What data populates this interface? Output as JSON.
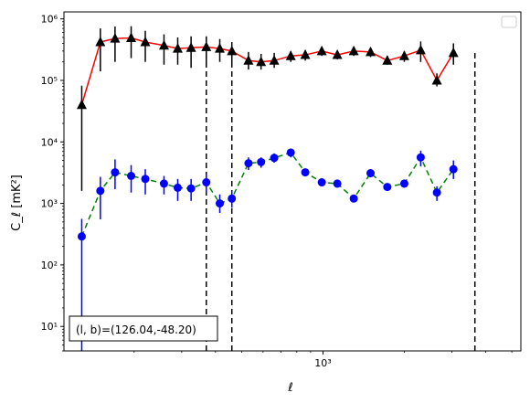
{
  "chart_data": {
    "type": "scatter",
    "xlabel": "ℓ",
    "ylabel": "C_ℓ [mK²]",
    "xscale": "log",
    "yscale": "log",
    "xlim": [
      110,
      5400
    ],
    "ylim": [
      4,
      1300000
    ],
    "x_tick_label": "10³",
    "y_tick_labels": [
      "10¹",
      "10²",
      "10³",
      "10⁴",
      "10⁵",
      "10⁶"
    ],
    "annotation": "(l, b)=(126.04,-48.20)",
    "legend": "empty box, top-right",
    "vlines_x": [
      370,
      460,
      3650
    ],
    "series": [
      {
        "style": "red solid line, black triangle markers, black error bars",
        "color": "#ff0000",
        "marker_color": "#000000",
        "points": [
          {
            "x": 128,
            "y": 40000,
            "lo": 1600,
            "hi": 82000
          },
          {
            "x": 150,
            "y": 420000,
            "lo": 140000,
            "hi": 700000
          },
          {
            "x": 170,
            "y": 480000,
            "lo": 200000,
            "hi": 750000
          },
          {
            "x": 195,
            "y": 490000,
            "lo": 230000,
            "hi": 760000
          },
          {
            "x": 220,
            "y": 420000,
            "lo": 200000,
            "hi": 640000
          },
          {
            "x": 258,
            "y": 370000,
            "lo": 180000,
            "hi": 560000
          },
          {
            "x": 290,
            "y": 330000,
            "lo": 180000,
            "hi": 500000
          },
          {
            "x": 325,
            "y": 340000,
            "lo": 160000,
            "hi": 520000
          },
          {
            "x": 370,
            "y": 350000,
            "lo": 180000,
            "hi": 520000
          },
          {
            "x": 415,
            "y": 330000,
            "lo": 200000,
            "hi": 470000
          },
          {
            "x": 460,
            "y": 300000,
            "lo": 190000,
            "hi": 420000
          },
          {
            "x": 530,
            "y": 210000,
            "lo": 150000,
            "hi": 290000
          },
          {
            "x": 590,
            "y": 200000,
            "lo": 150000,
            "hi": 270000
          },
          {
            "x": 660,
            "y": 210000,
            "lo": 160000,
            "hi": 280000
          },
          {
            "x": 760,
            "y": 250000,
            "lo": 200000,
            "hi": 300000
          },
          {
            "x": 860,
            "y": 260000,
            "lo": 210000,
            "hi": 310000
          },
          {
            "x": 990,
            "y": 300000,
            "lo": 250000,
            "hi": 350000
          },
          {
            "x": 1130,
            "y": 260000,
            "lo": 220000,
            "hi": 300000
          },
          {
            "x": 1300,
            "y": 300000,
            "lo": 250000,
            "hi": 350000
          },
          {
            "x": 1500,
            "y": 290000,
            "lo": 240000,
            "hi": 340000
          },
          {
            "x": 1730,
            "y": 210000,
            "lo": 180000,
            "hi": 250000
          },
          {
            "x": 2000,
            "y": 250000,
            "lo": 200000,
            "hi": 300000
          },
          {
            "x": 2300,
            "y": 310000,
            "lo": 200000,
            "hi": 430000
          },
          {
            "x": 2640,
            "y": 100000,
            "lo": 80000,
            "hi": 130000
          },
          {
            "x": 3040,
            "y": 280000,
            "lo": 180000,
            "hi": 400000
          }
        ]
      },
      {
        "style": "green dashed line, blue circle markers, blue error bars",
        "color": "#008000",
        "marker_color": "#0000ff",
        "points": [
          {
            "x": 128,
            "y": 290,
            "lo": 4,
            "hi": 560
          },
          {
            "x": 150,
            "y": 1600,
            "lo": 550,
            "hi": 2700
          },
          {
            "x": 170,
            "y": 3200,
            "lo": 1700,
            "hi": 5200
          },
          {
            "x": 195,
            "y": 2800,
            "lo": 1500,
            "hi": 4200
          },
          {
            "x": 220,
            "y": 2500,
            "lo": 1400,
            "hi": 3600
          },
          {
            "x": 258,
            "y": 2100,
            "lo": 1400,
            "hi": 2800
          },
          {
            "x": 290,
            "y": 1800,
            "lo": 1100,
            "hi": 2500
          },
          {
            "x": 325,
            "y": 1750,
            "lo": 1100,
            "hi": 2500
          },
          {
            "x": 370,
            "y": 2200,
            "lo": 1500,
            "hi": 3000
          },
          {
            "x": 415,
            "y": 1000,
            "lo": 700,
            "hi": 1400
          },
          {
            "x": 460,
            "y": 1200,
            "lo": 850,
            "hi": 1600
          },
          {
            "x": 530,
            "y": 4500,
            "lo": 3500,
            "hi": 5600
          },
          {
            "x": 590,
            "y": 4700,
            "lo": 3800,
            "hi": 5600
          },
          {
            "x": 660,
            "y": 5500,
            "lo": 4600,
            "hi": 6500
          },
          {
            "x": 760,
            "y": 6700,
            "lo": 5600,
            "hi": 7800
          },
          {
            "x": 860,
            "y": 3200,
            "lo": 2800,
            "hi": 3700
          },
          {
            "x": 990,
            "y": 2200,
            "lo": 1900,
            "hi": 2500
          },
          {
            "x": 1130,
            "y": 2100,
            "lo": 1800,
            "hi": 2400
          },
          {
            "x": 1300,
            "y": 1200,
            "lo": 1050,
            "hi": 1350
          },
          {
            "x": 1500,
            "y": 3100,
            "lo": 2700,
            "hi": 3500
          },
          {
            "x": 1730,
            "y": 1850,
            "lo": 1600,
            "hi": 2100
          },
          {
            "x": 2000,
            "y": 2100,
            "lo": 1800,
            "hi": 2400
          },
          {
            "x": 2300,
            "y": 5600,
            "lo": 4000,
            "hi": 7200
          },
          {
            "x": 2640,
            "y": 1500,
            "lo": 1100,
            "hi": 1900
          },
          {
            "x": 3040,
            "y": 3600,
            "lo": 2500,
            "hi": 5000
          }
        ]
      }
    ]
  }
}
